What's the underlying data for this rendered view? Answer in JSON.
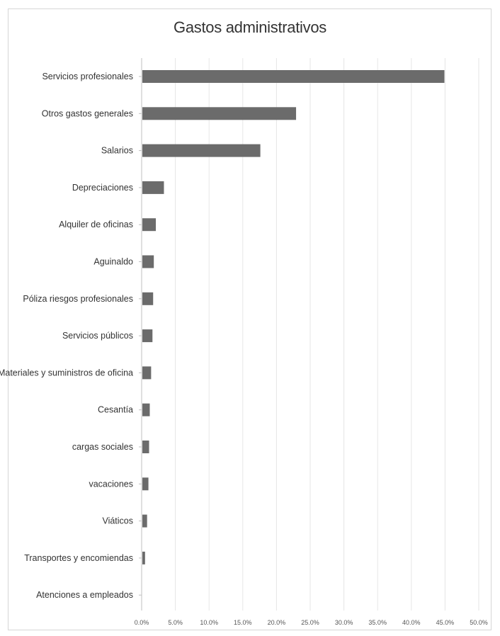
{
  "chart_data": {
    "type": "bar",
    "orientation": "horizontal",
    "title": "Gastos administrativos",
    "xlabel": "",
    "ylabel": "",
    "categories": [
      "Servicios profesionales",
      "Otros gastos generales",
      "Salarios",
      "Depreciaciones",
      "Alquiler de oficinas",
      "Aguinaldo",
      "Póliza riesgos profesionales",
      "Servicios públicos",
      "Materiales y suministros de oficina",
      "Cesantía",
      "cargas sociales",
      "vacaciones",
      "Viáticos",
      "Transportes y encomiendas",
      "Atenciones a empleados"
    ],
    "values": [
      44.8,
      22.8,
      17.5,
      3.2,
      2.0,
      1.7,
      1.6,
      1.5,
      1.3,
      1.1,
      1.0,
      0.9,
      0.7,
      0.4,
      0.0
    ],
    "xlim": [
      0,
      50
    ],
    "x_ticks": [
      0,
      5,
      10,
      15,
      20,
      25,
      30,
      35,
      40,
      45,
      50
    ],
    "x_tick_labels": [
      "0.0%",
      "5.0%",
      "10.0%",
      "15.0%",
      "20.0%",
      "25.0%",
      "30.0%",
      "35.0%",
      "40.0%",
      "45.0%",
      "50.0%"
    ],
    "grid": true,
    "legend": "none",
    "bar_color": "#6b6b6b"
  }
}
